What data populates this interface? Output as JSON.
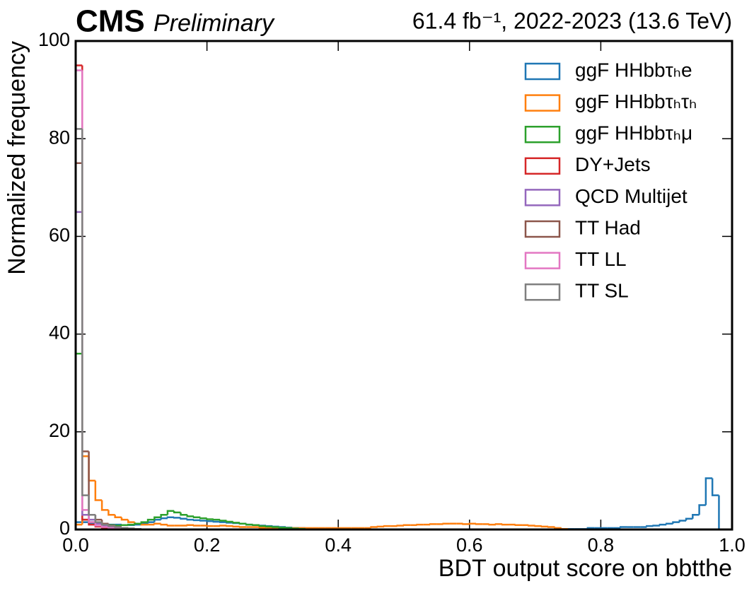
{
  "chart_data": {
    "type": "histogram",
    "experiment": "CMS",
    "status": "Preliminary",
    "lumi_label": "61.4 fb⁻¹, 2022-2023 (13.6 TeV)",
    "xlabel": "BDT output score on bbtthe",
    "ylabel": "Normalized frequency",
    "xlim": [
      0,
      1
    ],
    "ylim": [
      0,
      100
    ],
    "xticks": [
      {
        "value": 0,
        "label": "0.0"
      },
      0.2,
      0.4,
      0.6,
      0.8,
      {
        "value": 1,
        "label": "1.0"
      }
    ],
    "yticks": [
      0,
      20,
      40,
      60,
      80,
      100
    ],
    "legend": "upper right",
    "bins": [
      0,
      0.01,
      0.02,
      0.03,
      0.04,
      0.05,
      0.06,
      0.07,
      0.08,
      0.09,
      0.1,
      0.11,
      0.12,
      0.13,
      0.14,
      0.15,
      0.16,
      0.17,
      0.18,
      0.19,
      0.2,
      0.21,
      0.22,
      0.23,
      0.24,
      0.25,
      0.26,
      0.27,
      0.28,
      0.29,
      0.3,
      0.31,
      0.32,
      0.33,
      0.34,
      0.35,
      0.36,
      0.37,
      0.38,
      0.39,
      0.4,
      0.41,
      0.42,
      0.43,
      0.44,
      0.45,
      0.46,
      0.47,
      0.48,
      0.49,
      0.5,
      0.51,
      0.52,
      0.53,
      0.54,
      0.55,
      0.56,
      0.57,
      0.58,
      0.59,
      0.6,
      0.61,
      0.62,
      0.63,
      0.64,
      0.65,
      0.66,
      0.67,
      0.68,
      0.69,
      0.7,
      0.71,
      0.72,
      0.73,
      0.74,
      0.75,
      0.76,
      0.77,
      0.78,
      0.79,
      0.8,
      0.81,
      0.82,
      0.83,
      0.84,
      0.85,
      0.86,
      0.87,
      0.88,
      0.89,
      0.9,
      0.91,
      0.92,
      0.93,
      0.94,
      0.95,
      0.96,
      0.97,
      0.98,
      0.99,
      1
    ],
    "series": [
      {
        "name": "ggF HHbbτₕe",
        "color": "#1f77b4",
        "values": [
          1.5,
          1.5,
          1.3,
          1.2,
          1.1,
          1.0,
          1.0,
          0.9,
          0.9,
          1.0,
          1.2,
          1.5,
          2.0,
          2.3,
          2.5,
          2.4,
          2.2,
          2.0,
          1.9,
          1.8,
          1.7,
          1.6,
          1.5,
          1.4,
          1.3,
          1.2,
          1.0,
          0.9,
          0.8,
          0.7,
          0.6,
          0.5,
          0.4,
          0.3,
          0.3,
          0.2,
          0.2,
          0.1,
          0.1,
          0.1,
          0,
          0,
          0,
          0,
          0,
          0,
          0,
          0,
          0,
          0,
          0,
          0,
          0,
          0,
          0,
          0,
          0,
          0,
          0,
          0,
          0,
          0,
          0,
          0,
          0,
          0,
          0,
          0,
          0,
          0,
          0,
          0,
          0,
          0.1,
          0.1,
          0.1,
          0.1,
          0.1,
          0.3,
          0.3,
          0.3,
          0.3,
          0.3,
          0.5,
          0.5,
          0.5,
          0.5,
          0.7,
          0.8,
          1.0,
          1.2,
          1.5,
          1.8,
          2.2,
          3.0,
          5.0,
          10.5,
          7.0,
          0,
          0
        ]
      },
      {
        "name": "ggF HHbbτₕτₕ",
        "color": "#ff7f0e",
        "values": [
          1,
          15,
          10,
          6,
          4,
          3,
          2.5,
          2,
          1.5,
          1.2,
          1.0,
          1.0,
          1.2,
          1.0,
          0.8,
          0.8,
          0.8,
          0.9,
          0.8,
          0.8,
          0.7,
          0.7,
          0.8,
          0.7,
          0.6,
          0.5,
          0.5,
          0.5,
          0.4,
          0.4,
          0.3,
          0.3,
          0.3,
          0.3,
          0.3,
          0.3,
          0.3,
          0.3,
          0.3,
          0.3,
          0.3,
          0.3,
          0.3,
          0.3,
          0.3,
          0.5,
          0.6,
          0.7,
          0.7,
          0.8,
          0.9,
          0.9,
          1.0,
          1.0,
          1.1,
          1.1,
          1.2,
          1.2,
          1.2,
          1.1,
          1.2,
          1.1,
          1.1,
          1.0,
          1.1,
          1.0,
          1.0,
          0.9,
          0.9,
          0.8,
          0.7,
          0.6,
          0.5,
          0.3,
          0.1,
          0,
          0,
          0,
          0,
          0,
          0,
          0,
          0,
          0,
          0,
          0,
          0,
          0,
          0,
          0,
          0,
          0,
          0,
          0,
          0,
          0,
          0,
          0,
          0,
          0
        ]
      },
      {
        "name": "ggF HHbbτₕμ",
        "color": "#2ca02c",
        "values": [
          36,
          2,
          1.5,
          1.2,
          1.0,
          0.9,
          0.8,
          0.9,
          1.0,
          1.2,
          1.5,
          2.0,
          2.5,
          3.0,
          3.8,
          3.5,
          3.0,
          2.7,
          2.5,
          2.3,
          2.1,
          2.0,
          1.8,
          1.6,
          1.4,
          1.2,
          1.0,
          0.9,
          0.7,
          0.6,
          0.5,
          0.4,
          0.3,
          0.2,
          0.1,
          0,
          0,
          0,
          0,
          0,
          0,
          0,
          0,
          0,
          0,
          0,
          0,
          0,
          0,
          0,
          0,
          0,
          0,
          0,
          0,
          0,
          0,
          0,
          0,
          0,
          0,
          0,
          0,
          0,
          0,
          0,
          0,
          0,
          0,
          0,
          0,
          0,
          0,
          0,
          0,
          0,
          0,
          0,
          0,
          0,
          0,
          0,
          0,
          0,
          0,
          0,
          0,
          0,
          0,
          0,
          0,
          0,
          0,
          0,
          0,
          0,
          0,
          0,
          0,
          0
        ]
      },
      {
        "name": "DY+Jets",
        "color": "#d62728",
        "values": [
          95,
          2,
          1,
          0.6,
          0.4,
          0.3,
          0.2,
          0.1,
          0,
          0,
          0,
          0,
          0,
          0,
          0,
          0,
          0,
          0,
          0,
          0,
          0,
          0,
          0,
          0,
          0,
          0,
          0,
          0,
          0,
          0,
          0,
          0,
          0,
          0,
          0,
          0,
          0,
          0,
          0,
          0,
          0,
          0,
          0,
          0,
          0,
          0,
          0,
          0,
          0,
          0,
          0,
          0,
          0,
          0,
          0,
          0,
          0,
          0,
          0,
          0,
          0,
          0,
          0,
          0,
          0,
          0,
          0,
          0,
          0,
          0,
          0,
          0,
          0,
          0,
          0,
          0,
          0,
          0,
          0,
          0,
          0,
          0,
          0,
          0,
          0,
          0,
          0,
          0,
          0,
          0,
          0,
          0,
          0,
          0,
          0,
          0,
          0,
          0,
          0,
          0
        ]
      },
      {
        "name": "QCD Multijet",
        "color": "#9467bd",
        "values": [
          65,
          3,
          2,
          1.2,
          0.8,
          0.5,
          0.4,
          0.3,
          0.2,
          0.1,
          0,
          0,
          0,
          0,
          0,
          0,
          0,
          0,
          0,
          0,
          0,
          0,
          0,
          0,
          0,
          0,
          0,
          0,
          0,
          0,
          0,
          0,
          0,
          0,
          0,
          0,
          0,
          0,
          0,
          0,
          0,
          0,
          0,
          0,
          0,
          0,
          0,
          0,
          0,
          0,
          0,
          0,
          0,
          0,
          0,
          0,
          0,
          0,
          0,
          0,
          0,
          0,
          0,
          0,
          0,
          0,
          0,
          0,
          0,
          0,
          0,
          0,
          0,
          0,
          0,
          0,
          0,
          0,
          0,
          0,
          0,
          0,
          0,
          0,
          0,
          0,
          0,
          0,
          0,
          0,
          0,
          0,
          0,
          0,
          0,
          0,
          0,
          0,
          0,
          0
        ]
      },
      {
        "name": "TT Had",
        "color": "#8c564b",
        "values": [
          75,
          16,
          3,
          2,
          1.2,
          0.8,
          0.5,
          0.3,
          0.2,
          0.1,
          0,
          0,
          0,
          0,
          0,
          0,
          0,
          0,
          0,
          0,
          0,
          0,
          0,
          0,
          0,
          0,
          0,
          0,
          0,
          0,
          0,
          0,
          0,
          0,
          0,
          0,
          0,
          0,
          0,
          0,
          0,
          0,
          0,
          0,
          0,
          0,
          0,
          0,
          0,
          0,
          0,
          0,
          0,
          0,
          0,
          0,
          0,
          0,
          0,
          0,
          0,
          0,
          0,
          0,
          0,
          0,
          0,
          0,
          0,
          0,
          0,
          0,
          0,
          0,
          0,
          0,
          0,
          0,
          0,
          0,
          0,
          0,
          0,
          0,
          0,
          0,
          0,
          0,
          0,
          0,
          0,
          0,
          0,
          0,
          0,
          0,
          0,
          0,
          0,
          0
        ]
      },
      {
        "name": "TT LL",
        "color": "#e377c2",
        "values": [
          94,
          4,
          1.5,
          0.8,
          0.5,
          0.3,
          0.2,
          0.1,
          0,
          0,
          0,
          0,
          0,
          0,
          0,
          0,
          0,
          0,
          0,
          0,
          0,
          0,
          0,
          0,
          0,
          0,
          0,
          0,
          0,
          0,
          0,
          0,
          0,
          0,
          0,
          0,
          0,
          0,
          0,
          0,
          0,
          0,
          0,
          0,
          0,
          0,
          0,
          0,
          0,
          0,
          0,
          0,
          0,
          0,
          0,
          0,
          0,
          0,
          0,
          0,
          0,
          0,
          0,
          0,
          0,
          0,
          0,
          0,
          0,
          0,
          0,
          0,
          0,
          0,
          0,
          0,
          0,
          0,
          0,
          0,
          0,
          0,
          0,
          0,
          0,
          0,
          0,
          0,
          0,
          0,
          0,
          0,
          0,
          0,
          0,
          0,
          0,
          0,
          0,
          0
        ]
      },
      {
        "name": "TT SL",
        "color": "#7f7f7f",
        "values": [
          82,
          7,
          3,
          1.5,
          1.0,
          0.7,
          0.5,
          0.3,
          0.2,
          0.1,
          0,
          0,
          0,
          0,
          0,
          0,
          0,
          0,
          0,
          0,
          0,
          0,
          0,
          0,
          0,
          0,
          0,
          0,
          0,
          0,
          0,
          0,
          0,
          0,
          0,
          0,
          0,
          0,
          0,
          0,
          0,
          0,
          0,
          0,
          0,
          0,
          0,
          0,
          0,
          0,
          0,
          0,
          0,
          0,
          0,
          0,
          0,
          0,
          0,
          0,
          0,
          0,
          0,
          0,
          0,
          0,
          0,
          0,
          0,
          0,
          0,
          0,
          0,
          0,
          0,
          0,
          0,
          0,
          0,
          0,
          0,
          0,
          0,
          0,
          0,
          0,
          0,
          0,
          0,
          0,
          0,
          0,
          0,
          0,
          0,
          0,
          0,
          0,
          0,
          0
        ]
      }
    ]
  }
}
